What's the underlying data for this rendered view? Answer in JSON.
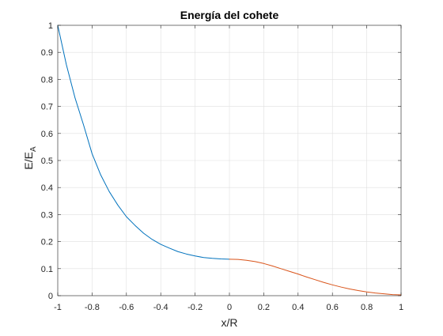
{
  "chart_data": {
    "type": "line",
    "title": "Energía del cohete",
    "xlabel": "x/R",
    "ylabel_main": "E/E",
    "ylabel_sub": "A",
    "xlim": [
      -1,
      1
    ],
    "ylim": [
      0,
      1
    ],
    "grid": true,
    "x_ticks": [
      -1,
      -0.8,
      -0.6,
      -0.4,
      -0.2,
      0,
      0.2,
      0.4,
      0.6,
      0.8,
      1
    ],
    "x_tick_labels": [
      "-1",
      "-0.8",
      "-0.6",
      "-0.4",
      "-0.2",
      "0",
      "0.2",
      "0.4",
      "0.6",
      "0.8",
      "1"
    ],
    "y_ticks": [
      0,
      0.1,
      0.2,
      0.3,
      0.4,
      0.5,
      0.6,
      0.7,
      0.8,
      0.9,
      1
    ],
    "y_tick_labels": [
      "0",
      "0.1",
      "0.2",
      "0.3",
      "0.4",
      "0.5",
      "0.6",
      "0.7",
      "0.8",
      "0.9",
      "1"
    ],
    "series": [
      {
        "color": "#0072bd",
        "x": [
          -1,
          -0.95,
          -0.9,
          -0.85,
          -0.8,
          -0.75,
          -0.7,
          -0.65,
          -0.6,
          -0.55,
          -0.5,
          -0.45,
          -0.4,
          -0.35,
          -0.3,
          -0.25,
          -0.2,
          -0.15,
          -0.1,
          -0.05,
          0
        ],
        "y": [
          1.0,
          0.855,
          0.733,
          0.632,
          0.525,
          0.447,
          0.385,
          0.335,
          0.292,
          0.26,
          0.231,
          0.208,
          0.19,
          0.176,
          0.163,
          0.154,
          0.147,
          0.141,
          0.138,
          0.136,
          0.135
        ]
      },
      {
        "color": "#d95319",
        "x": [
          0,
          0.05,
          0.1,
          0.15,
          0.2,
          0.25,
          0.3,
          0.35,
          0.4,
          0.45,
          0.5,
          0.55,
          0.6,
          0.65,
          0.7,
          0.75,
          0.8,
          0.85,
          0.9,
          0.95,
          1
        ],
        "y": [
          0.135,
          0.134,
          0.131,
          0.126,
          0.119,
          0.11,
          0.1,
          0.09,
          0.08,
          0.069,
          0.059,
          0.049,
          0.04,
          0.032,
          0.025,
          0.019,
          0.014,
          0.01,
          0.007,
          0.004,
          0.003
        ]
      }
    ]
  }
}
